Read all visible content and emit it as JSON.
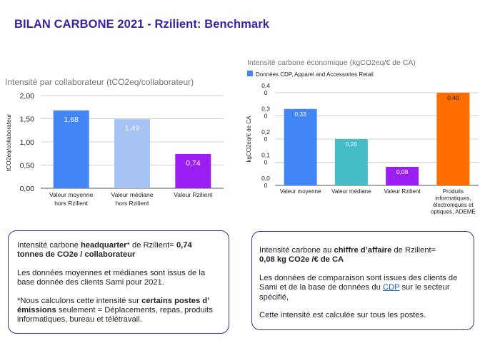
{
  "title": "BILAN CARBONE 2021 - Rzilient: Benchmark",
  "colors": {
    "title": "#3a1fa6",
    "blue": "#4285f4",
    "light_blue": "#a4c2f4",
    "purple": "#9b1ff2",
    "teal": "#46bdc6",
    "orange": "#ff6d01"
  },
  "chart_data": [
    {
      "type": "bar",
      "title": "Intensité par collaborateur (tCO2eq/collaborateur)",
      "xlabel": "",
      "ylabel": "tCO2eq/collaborateur",
      "ylim": [
        0,
        2
      ],
      "yticks": [
        "0,00",
        "0,50",
        "1,00",
        "1,50",
        "2,00"
      ],
      "grid": true,
      "categories": [
        [
          "Valeur moyenne",
          "hors Rzilient"
        ],
        [
          "Valeur médiane",
          "hors Rzilient"
        ],
        [
          "Valeur Rzilient"
        ]
      ],
      "values": [
        1.68,
        1.49,
        0.74
      ],
      "labels": [
        "1,68",
        "1,49",
        "0,74"
      ],
      "bar_colors": [
        "#4285f4",
        "#a4c2f4",
        "#9b1ff2"
      ]
    },
    {
      "type": "bar",
      "title": "Intensité carbone économique (kgCO2eq/€ de CA)",
      "legend": "Données CDP, Apparel and Accessories Retail",
      "legend_position": "top-left",
      "xlabel": "",
      "ylabel": "kgCO2eq/€ de CA",
      "ylim": [
        0,
        0.4
      ],
      "yticks": [
        [
          "0,0",
          "0"
        ],
        [
          "0,1",
          "0"
        ],
        [
          "0,2",
          "0"
        ],
        [
          "0,3",
          "0"
        ],
        [
          "0,4",
          "0"
        ]
      ],
      "grid": true,
      "categories": [
        [
          "Valeur moyenne"
        ],
        [
          "Valeur médiane"
        ],
        [
          "Valeur Rzilient"
        ],
        [
          "Produits",
          "informatiques,",
          "électroniques et",
          "optiques, ADEME"
        ]
      ],
      "values": [
        0.33,
        0.2,
        0.08,
        0.4
      ],
      "labels": [
        "0,33",
        "0,20",
        "0,08",
        "0,40"
      ],
      "bar_colors": [
        "#4285f4",
        "#46bdc6",
        "#9b1ff2",
        "#ff6d01"
      ]
    }
  ],
  "box_left": {
    "p1_a": "Intensité carbone ",
    "p1_b": "headquarter",
    "p1_c": "* de Rzilient=  ",
    "p1_d": "0,74 tonnes de CO2e / collaborateur",
    "p2": "Les données moyennes et médianes sont issus de la base donnée des clients Sami pour 2021.",
    "p3_a": "*Nous calculons cette intensité sur ",
    "p3_b": "certains postes d’ émissions",
    "p3_c": " seulement  = Déplacements, repas, produits informatiques, bureau et télétravail."
  },
  "box_right": {
    "p1_a": "Intensité carbone au ",
    "p1_b": "chiffre d’affaire",
    "p1_c": " de Rzilient= ",
    "p1_d": "0,08 kg CO2e /€ de CA",
    "p2_a": "Les données de comparaison sont issues des clients de Sami  et de la base de données du ",
    "p2_link": "CDP",
    "p2_b": " sur le secteur spécifié,",
    "p3": "Cette intensité est calculée sur tous les postes."
  }
}
